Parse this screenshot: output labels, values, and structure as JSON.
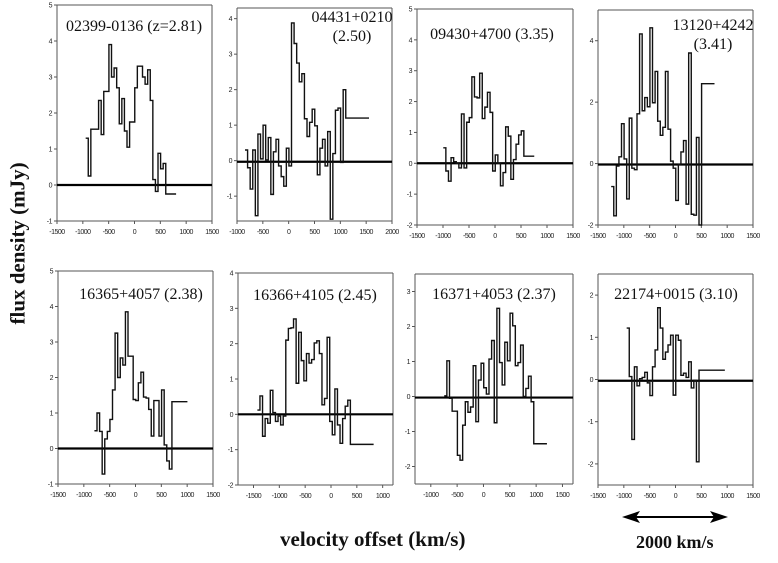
{
  "figure": {
    "ylabel": "flux density (mJy)",
    "xlabel": "velocity offset (km/s)",
    "scale_bar_label": "2000 km/s",
    "scale_bar_kms": 2000
  },
  "chart_data": [
    {
      "type": "line",
      "step": true,
      "title": "02399-0136 (z=2.81)",
      "xlim": [
        -1500,
        1500
      ],
      "ylim": [
        -1,
        5
      ],
      "xticks": [
        -1500,
        -1000,
        -500,
        0,
        500,
        1000,
        1500
      ],
      "yticks": [
        -1,
        0,
        1,
        2,
        3,
        4,
        5
      ],
      "x": [
        -920,
        -870,
        -820,
        -770,
        -720,
        -670,
        -620,
        -570,
        -520,
        -470,
        -420,
        -370,
        -320,
        -270,
        -220,
        -170,
        -120,
        -70,
        -20,
        30,
        80,
        130,
        180,
        230,
        280,
        330,
        380,
        430,
        480,
        530,
        580,
        630,
        680,
        730,
        780
      ],
      "y": [
        1.3,
        0.25,
        1.55,
        1.55,
        1.55,
        2.35,
        1.4,
        2.6,
        2.6,
        3.9,
        3.0,
        3.25,
        2.7,
        1.7,
        2.4,
        1.5,
        1.05,
        1.75,
        1.75,
        2.7,
        3.3,
        3.3,
        3.0,
        2.8,
        3.2,
        2.35,
        0.15,
        -0.18,
        0.88,
        0.45,
        0.6,
        -0.25,
        -0.25,
        -0.25,
        -0.25
      ],
      "baseline": 0
    },
    {
      "type": "line",
      "step": true,
      "title": "04431+0210 (2.50)",
      "title_lines": [
        "04431+0210",
        "(2.50)"
      ],
      "xlim": [
        -1000,
        2000
      ],
      "ylim": [
        -1.7,
        4.3
      ],
      "xticks": [
        -1000,
        -500,
        0,
        500,
        1000,
        1500,
        2000
      ],
      "yticks": [
        -1,
        0,
        1,
        2,
        3,
        4
      ],
      "x": [
        -820,
        -770,
        -720,
        -670,
        -620,
        -570,
        -520,
        -470,
        -420,
        -370,
        -320,
        -270,
        -220,
        -170,
        -120,
        -70,
        -20,
        30,
        80,
        130,
        180,
        230,
        280,
        330,
        380,
        430,
        480,
        530,
        580,
        630,
        680,
        730,
        780,
        830,
        880,
        930,
        980,
        1030,
        1080,
        1130,
        1180,
        1230,
        1280,
        1330,
        1380,
        1430,
        1480,
        1530
      ],
      "y": [
        0.3,
        -0.2,
        -0.8,
        0.3,
        -1.55,
        0.75,
        0.05,
        1.0,
        0.02,
        0.65,
        -0.95,
        0.25,
        0.6,
        -0.15,
        -0.45,
        -0.72,
        0.35,
        -0.15,
        3.88,
        3.3,
        2.75,
        2.22,
        2.45,
        1.18,
        0.68,
        1.08,
        1.45,
        0.98,
        -0.4,
        0.35,
        0.6,
        -0.15,
        0.82,
        -1.65,
        0.2,
        1.42,
        1.48,
        -0.05,
        2.0,
        1.2,
        1.2,
        1.2,
        1.2,
        1.2,
        1.2,
        1.2,
        1.2,
        1.2
      ],
      "baseline": -0.03
    },
    {
      "type": "line",
      "step": true,
      "title": "09430+4700 (3.35)",
      "xlim": [
        -1500,
        1500
      ],
      "ylim": [
        -2,
        5
      ],
      "xticks": [
        -1500,
        -1000,
        -500,
        0,
        500,
        1000,
        1500
      ],
      "yticks": [
        -2,
        -1,
        0,
        1,
        2,
        3,
        4,
        5
      ],
      "x": [
        -970,
        -920,
        -870,
        -820,
        -770,
        -720,
        -670,
        -620,
        -570,
        -520,
        -470,
        -420,
        -370,
        -320,
        -270,
        -220,
        -170,
        -120,
        -70,
        -20,
        30,
        80,
        130,
        180,
        230,
        280,
        330,
        380,
        430,
        480,
        530,
        580,
        630,
        680,
        730
      ],
      "y": [
        0.5,
        -0.25,
        -0.58,
        0.18,
        0.05,
        0.0,
        -0.15,
        1.6,
        -0.15,
        1.33,
        1.48,
        2.8,
        2.15,
        2.12,
        2.92,
        1.45,
        1.82,
        2.3,
        1.65,
        -0.25,
        0.27,
        0.0,
        -0.73,
        -0.3,
        1.18,
        0.88,
        -0.52,
        0.12,
        0.62,
        0.92,
        1.05,
        0.23,
        0.23,
        0.23,
        0.23
      ],
      "baseline": 0
    },
    {
      "type": "line",
      "step": true,
      "title": "13120+4242 (3.41)",
      "title_lines": [
        "13120+4242",
        "(3.41)"
      ],
      "xlim": [
        -1500,
        1500
      ],
      "ylim": [
        -2,
        5
      ],
      "xticks": [
        -1500,
        -1000,
        -500,
        0,
        500,
        1000,
        1500
      ],
      "yticks": [
        -2,
        0,
        2,
        4
      ],
      "x": [
        -1220,
        -1170,
        -1120,
        -1070,
        -1020,
        -970,
        -920,
        -870,
        -820,
        -770,
        -720,
        -670,
        -620,
        -570,
        -520,
        -470,
        -420,
        -370,
        -320,
        -270,
        -220,
        -170,
        -120,
        -70,
        -20,
        30,
        80,
        130,
        180,
        230,
        280,
        330,
        380,
        430,
        480,
        530,
        580,
        630,
        680,
        730
      ],
      "y": [
        -0.75,
        -1.7,
        -0.08,
        0.22,
        1.3,
        0.15,
        -1.15,
        1.48,
        -0.15,
        -0.2,
        1.62,
        4.22,
        1.72,
        2.15,
        1.85,
        4.42,
        1.98,
        3.0,
        1.38,
        0.92,
        1.18,
        3.0,
        1.12,
        0.08,
        -0.15,
        -1.2,
        -0.02,
        0.38,
        0.75,
        -1.32,
        3.6,
        -1.65,
        -1.68,
        0.85,
        -2.0,
        2.6,
        2.6,
        2.6,
        2.6,
        2.6
      ],
      "baseline": -0.03
    },
    {
      "type": "line",
      "step": true,
      "title": "16365+4057 (2.38)",
      "xlim": [
        -1500,
        1500
      ],
      "ylim": [
        -1,
        5
      ],
      "xticks": [
        -1500,
        -1000,
        -500,
        0,
        500,
        1000,
        1500
      ],
      "yticks": [
        -1,
        0,
        1,
        2,
        3,
        4,
        5
      ],
      "x": [
        -770,
        -720,
        -670,
        -620,
        -570,
        -520,
        -470,
        -420,
        -370,
        -320,
        -270,
        -220,
        -170,
        -120,
        -70,
        -20,
        30,
        80,
        130,
        180,
        230,
        280,
        330,
        380,
        430,
        480,
        530,
        580,
        630,
        680,
        730,
        780,
        830,
        880,
        930,
        980
      ],
      "y": [
        0.5,
        1.0,
        0.48,
        -0.72,
        0.27,
        0.48,
        0.82,
        1.65,
        3.25,
        2.0,
        2.55,
        2.35,
        3.85,
        2.6,
        2.6,
        1.38,
        1.35,
        1.85,
        2.15,
        1.45,
        1.42,
        1.1,
        0.35,
        1.35,
        1.35,
        0.35,
        1.65,
        0.1,
        -0.35,
        -0.58,
        1.32,
        1.32,
        1.32,
        1.32,
        1.32,
        1.32
      ],
      "baseline": 0
    },
    {
      "type": "line",
      "step": true,
      "title": "16366+4105 (2.45)",
      "xlim": [
        -1800,
        1200
      ],
      "ylim": [
        -2,
        4
      ],
      "xticks": [
        -1500,
        -1000,
        -500,
        0,
        500,
        1000
      ],
      "yticks": [
        -2,
        -1,
        0,
        1,
        2,
        3,
        4
      ],
      "x": [
        -1400,
        -1350,
        -1300,
        -1250,
        -1200,
        -1150,
        -1100,
        -1050,
        -1000,
        -950,
        -900,
        -850,
        -800,
        -750,
        -700,
        -650,
        -600,
        -550,
        -500,
        -450,
        -400,
        -350,
        -300,
        -250,
        -200,
        -150,
        -100,
        -50,
        0,
        50,
        100,
        150,
        200,
        250,
        300,
        350,
        400,
        450,
        500,
        550,
        600,
        650,
        700,
        750,
        800
      ],
      "y": [
        0.12,
        0.52,
        -0.62,
        -0.12,
        -0.25,
        0.68,
        0.05,
        -0.2,
        -0.05,
        -0.3,
        -0.05,
        2.1,
        2.43,
        2.45,
        2.7,
        0.88,
        2.32,
        1.52,
        0.95,
        1.72,
        1.45,
        1.55,
        2.02,
        2.08,
        1.72,
        0.27,
        0.45,
        2.18,
        -0.2,
        -0.58,
        0.72,
        -0.3,
        -0.82,
        -0.12,
        0.23,
        0.4,
        -0.85,
        -0.85,
        -0.85,
        -0.85,
        -0.85,
        -0.85,
        -0.85,
        -0.85,
        -0.85
      ],
      "baseline": 0
    },
    {
      "type": "line",
      "step": true,
      "title": "16371+4053 (2.37)",
      "xlim": [
        -1300,
        1700
      ],
      "ylim": [
        -2.5,
        3.5
      ],
      "xticks": [
        -1000,
        -500,
        0,
        500,
        1000,
        1500
      ],
      "yticks": [
        -2,
        -1,
        0,
        1,
        2,
        3
      ],
      "x": [
        -720,
        -670,
        -620,
        -570,
        -520,
        -470,
        -420,
        -370,
        -320,
        -270,
        -220,
        -170,
        -120,
        -70,
        -20,
        30,
        80,
        130,
        180,
        230,
        280,
        330,
        380,
        430,
        480,
        530,
        580,
        630,
        680,
        730,
        780,
        830,
        880,
        930,
        980,
        1030,
        1080,
        1130,
        1180
      ],
      "y": [
        0.02,
        1.02,
        -0.05,
        -0.42,
        -0.42,
        -1.68,
        -1.82,
        -0.82,
        -0.15,
        -0.45,
        -0.3,
        0.88,
        -0.72,
        0.47,
        0.95,
        0.25,
        0.07,
        1.07,
        1.6,
        -0.75,
        2.52,
        0.97,
        0.33,
        1.55,
        1.02,
        2.38,
        2.02,
        0.88,
        0.97,
        1.47,
        0.0,
        0.23,
        0.58,
        -0.15,
        -1.35,
        -1.35,
        -1.35,
        -1.35,
        -1.35
      ],
      "baseline": -0.03
    },
    {
      "type": "line",
      "step": true,
      "title": "22174+0015 (3.10)",
      "xlim": [
        -1500,
        1500
      ],
      "ylim": [
        -2.5,
        2.5
      ],
      "xticks": [
        -1500,
        -1000,
        -500,
        0,
        500,
        1000,
        1500
      ],
      "yticks": [
        -2,
        -1,
        0,
        1,
        2
      ],
      "x": [
        -920,
        -870,
        -820,
        -770,
        -720,
        -670,
        -620,
        -570,
        -520,
        -470,
        -420,
        -370,
        -320,
        -270,
        -220,
        -170,
        -120,
        -70,
        -20,
        30,
        80,
        130,
        180,
        230,
        280,
        330,
        380,
        430,
        480,
        530,
        580,
        630,
        680,
        730,
        780,
        830,
        880,
        930
      ],
      "y": [
        1.22,
        0.07,
        -1.42,
        0.3,
        -0.15,
        0.02,
        0.05,
        0.17,
        -0.08,
        -0.38,
        0.3,
        0.7,
        1.7,
        1.22,
        0.48,
        0.65,
        0.82,
        1.05,
        -0.37,
        1.05,
        0.93,
        0.1,
        0.15,
        0.05,
        0.42,
        -0.2,
        -0.02,
        -1.95,
        0.22,
        0.22,
        0.22,
        0.22,
        0.22,
        0.22,
        0.22,
        0.22,
        0.22,
        0.22
      ],
      "baseline": -0.03
    }
  ]
}
